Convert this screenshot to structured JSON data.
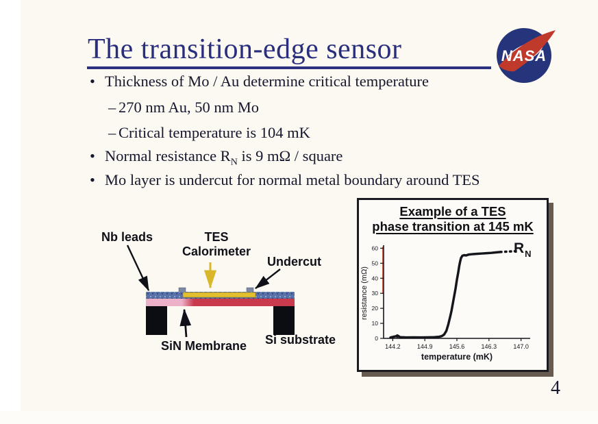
{
  "slide": {
    "title": "The transition-edge sensor",
    "page_number": "4",
    "bullet_glyph": "•",
    "dash_glyph": "–",
    "bullets": {
      "b1": "Thickness of Mo / Au determine critical temperature",
      "sb1": "270 nm Au,  50 nm Mo",
      "sb2": "Critical temperature is 104 mK",
      "b2_pre": "Normal resistance R",
      "b2_sub": "N",
      "b2_post": " is 9 mΩ / square",
      "b3": "Mo layer is undercut for normal metal boundary around TES"
    }
  },
  "nasa_logo": {
    "text": "NASA",
    "circle_color": "#26357b",
    "swoosh_color": "#bf3a2b"
  },
  "diagram": {
    "labels": {
      "nb_leads": "Nb leads",
      "tes_line1": "TES",
      "tes_line2": "Calorimeter",
      "undercut": "Undercut",
      "sin_membrane": "SiN Membrane",
      "si_substrate": "Si substrate"
    },
    "colors": {
      "nb_leads_layer": "#5871a8",
      "tes_layer": "#e2bf2e",
      "red_layer": "#c93a4c",
      "membrane_pink": "#ecb0c8",
      "substrate_black": "#0c0c13"
    }
  },
  "chart_box": {
    "title_line1": "Example of a TES",
    "title_line2": "phase transition at 145 mK",
    "rn_main": "R",
    "rn_sub": "N"
  },
  "chart_data": {
    "type": "line",
    "title": "Example of a TES phase transition at 145 mK",
    "xlabel": "temperature (mK)",
    "ylabel": "resistance (mΩ)",
    "xlim": [
      144.0,
      147.2
    ],
    "ylim": [
      0,
      62
    ],
    "x_ticks": [
      144.2,
      144.9,
      145.6,
      146.3,
      147.0
    ],
    "y_ticks": [
      0,
      10,
      20,
      30,
      40,
      50,
      60
    ],
    "grid": false,
    "annotation": "R_N (normal resistance) marked at upper-right end of curve",
    "series": [
      {
        "name": "TES resistance vs temperature",
        "points": [
          [
            144.15,
            0.6
          ],
          [
            144.28,
            1.5
          ],
          [
            144.32,
            1.6
          ],
          [
            144.36,
            0.8
          ],
          [
            144.5,
            0.6
          ],
          [
            144.65,
            0.7
          ],
          [
            144.8,
            0.6
          ],
          [
            144.95,
            0.7
          ],
          [
            145.1,
            0.8
          ],
          [
            145.2,
            1.0
          ],
          [
            145.27,
            1.5
          ],
          [
            145.32,
            2.5
          ],
          [
            145.37,
            5
          ],
          [
            145.41,
            9
          ],
          [
            145.45,
            14
          ],
          [
            145.48,
            18
          ],
          [
            145.51,
            23
          ],
          [
            145.54,
            28
          ],
          [
            145.57,
            33
          ],
          [
            145.6,
            39
          ],
          [
            145.63,
            44
          ],
          [
            145.65,
            48
          ],
          [
            145.67,
            51
          ],
          [
            145.69,
            53.5
          ],
          [
            145.72,
            55
          ],
          [
            145.76,
            55.4
          ],
          [
            145.8,
            55.2
          ],
          [
            145.86,
            55.8
          ],
          [
            145.95,
            56.1
          ],
          [
            146.05,
            56.3
          ],
          [
            146.15,
            56.5
          ],
          [
            146.25,
            56.7
          ],
          [
            146.35,
            56.9
          ],
          [
            146.45,
            57.2
          ],
          [
            146.55,
            57.5
          ]
        ]
      }
    ],
    "dashed_extension": [
      [
        146.55,
        57.5
      ],
      [
        146.92,
        58.1
      ]
    ],
    "outlier_point": [
      144.3,
      1.55
    ]
  }
}
